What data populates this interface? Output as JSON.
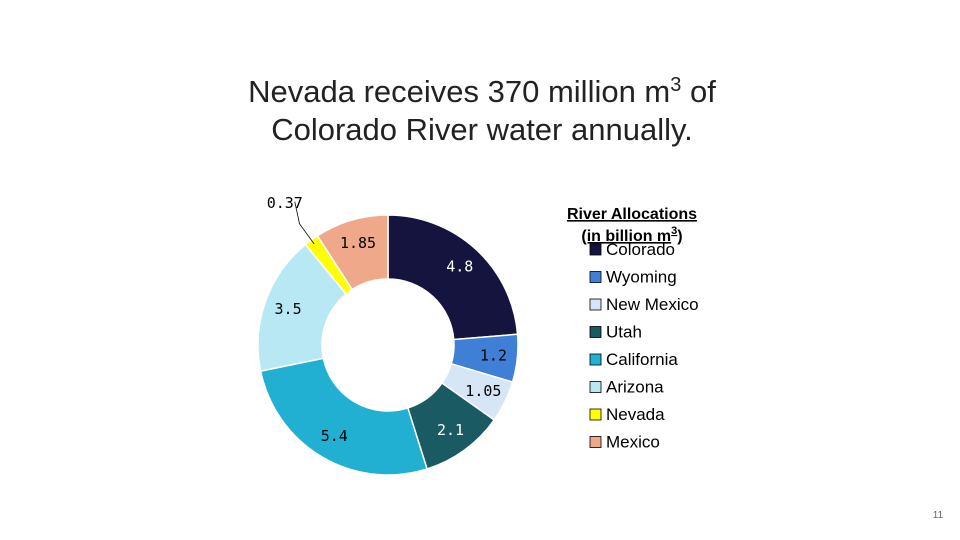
{
  "chart_data": {
    "type": "donut",
    "title": {
      "line1": "Nevada receives 370 million m",
      "line1_sup": "3",
      "line1_end": " of",
      "line2": "Colorado River water annually."
    },
    "legend_title": {
      "line1": "River Allocations",
      "line2": "(in billion m",
      "line2_sup": "3",
      "line2_end": ")"
    },
    "categories": [
      "Colorado",
      "Wyoming",
      "New Mexico",
      "Utah",
      "California",
      "Arizona",
      "Nevada",
      "Mexico"
    ],
    "values": [
      4.8,
      1.2,
      1.05,
      2.1,
      5.4,
      3.5,
      0.37,
      1.85
    ],
    "colors": [
      "#14143f",
      "#3f7fd6",
      "#d6e6f7",
      "#1a5a63",
      "#22b0d2",
      "#b8e8f4",
      "#ffff00",
      "#f0a88a"
    ]
  },
  "page_number": "11"
}
